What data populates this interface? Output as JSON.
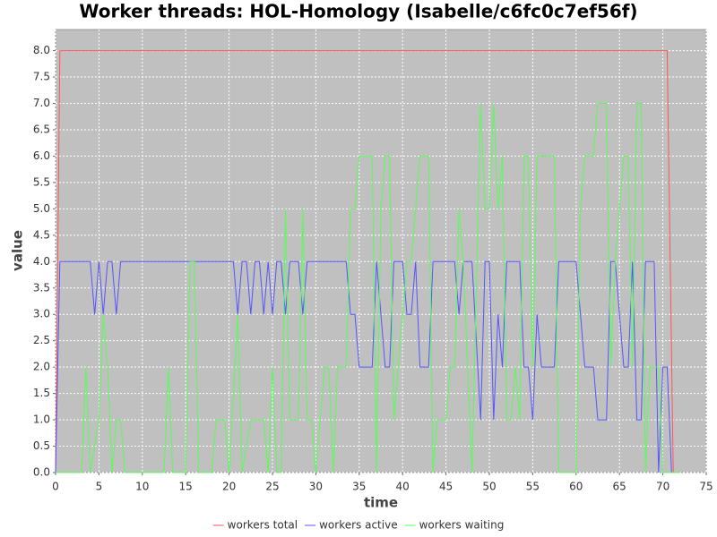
{
  "chart_data": {
    "type": "line",
    "title": "Worker threads: HOL-Homology (Isabelle/c6fc0c7ef56f)",
    "x_label": "time",
    "y_label": "value",
    "xlim": [
      0,
      75
    ],
    "xticks": [
      0,
      5,
      10,
      15,
      20,
      25,
      30,
      35,
      40,
      45,
      50,
      55,
      60,
      65,
      70,
      75
    ],
    "ylim": [
      0,
      8.4
    ],
    "yticks": [
      {
        "value": 0,
        "label": "0.0"
      },
      {
        "value": 0.5,
        "label": "0.5"
      },
      {
        "value": 1,
        "label": "1.0"
      },
      {
        "value": 1.5,
        "label": "1.5"
      },
      {
        "value": 2,
        "label": "2.0"
      },
      {
        "value": 2.5,
        "label": "2.5"
      },
      {
        "value": 3,
        "label": "3.0"
      },
      {
        "value": 3.5,
        "label": "3.5"
      },
      {
        "value": 4,
        "label": "4.0"
      },
      {
        "value": 4.5,
        "label": "4.5"
      },
      {
        "value": 5,
        "label": "5.0"
      },
      {
        "value": 5.5,
        "label": "5.5"
      },
      {
        "value": 6,
        "label": "6.0"
      },
      {
        "value": 6.5,
        "label": "6.5"
      },
      {
        "value": 7,
        "label": "7.0"
      },
      {
        "value": 7.5,
        "label": "7.5"
      },
      {
        "value": 8,
        "label": "8.0"
      }
    ],
    "grid": true,
    "legend": "bottom",
    "series": [
      {
        "name": "workers total",
        "color": "#ff5555",
        "x": [
          0,
          0.5,
          70.5,
          71.2,
          72
        ],
        "values": [
          0,
          8,
          8,
          0,
          0
        ]
      },
      {
        "name": "workers active",
        "color": "#5555ff",
        "x": [
          0,
          0.5,
          4,
          4.5,
          5,
          5.5,
          6,
          6.5,
          7,
          7.5,
          20.5,
          21,
          21.5,
          22,
          22.5,
          23,
          23.5,
          24,
          24.5,
          25,
          25.5,
          26,
          26.5,
          27,
          28,
          28.5,
          29,
          33.5,
          34,
          34.5,
          35,
          36.5,
          37,
          38,
          38.5,
          39,
          40,
          40.5,
          41,
          41.5,
          42,
          43,
          43.5,
          46,
          46.5,
          47,
          48,
          49,
          49.5,
          50,
          50.5,
          51,
          51.5,
          52,
          53.5,
          54,
          54.5,
          55,
          55.5,
          56,
          57.5,
          58,
          60,
          61,
          62,
          62.5,
          63.5,
          64,
          64.5,
          65,
          65.5,
          66,
          66.5,
          67,
          67.5,
          68,
          69,
          69.5,
          70,
          70.5,
          71,
          72
        ],
        "values": [
          0,
          4,
          4,
          3,
          4,
          3,
          4,
          4,
          3,
          4,
          4,
          3,
          4,
          4,
          3,
          4,
          4,
          3,
          4,
          3,
          4,
          4,
          3,
          4,
          4,
          3,
          4,
          4,
          3,
          3,
          2,
          2,
          4,
          2,
          2,
          4,
          4,
          3,
          3,
          4,
          2,
          2,
          4,
          4,
          3,
          4,
          4,
          1,
          4,
          4,
          1,
          3,
          2,
          4,
          4,
          2,
          2,
          1,
          3,
          2,
          2,
          4,
          4,
          2,
          2,
          1,
          1,
          4,
          4,
          3,
          2,
          2,
          4,
          1,
          1,
          4,
          4,
          0,
          2,
          2,
          0,
          0
        ]
      },
      {
        "name": "workers waiting",
        "color": "#55ff55",
        "x": [
          0,
          3,
          3.5,
          4,
          5,
          5.5,
          6,
          6.5,
          7,
          7.5,
          8,
          12.5,
          13,
          13.5,
          15,
          15.5,
          16,
          16.5,
          18,
          18.5,
          19.5,
          20,
          21,
          21.5,
          22.5,
          24,
          24.5,
          25,
          25.5,
          26,
          26.5,
          27,
          28,
          28.5,
          29,
          29.5,
          30,
          31,
          31.5,
          32,
          32.5,
          33.5,
          34,
          34.5,
          35,
          36.5,
          37,
          37.5,
          38,
          38.5,
          39,
          40,
          40.5,
          41,
          42,
          43,
          43.5,
          44,
          45,
          45.5,
          46,
          46.5,
          47,
          48,
          49,
          49.5,
          50,
          50.5,
          51,
          51.5,
          52,
          52.5,
          53,
          53.5,
          54,
          54.5,
          55,
          55.5,
          57.5,
          58,
          60,
          60.5,
          61,
          62,
          62.5,
          63.5,
          64,
          64.5,
          65,
          65.5,
          66,
          66.5,
          67,
          67.5,
          68,
          68.5,
          69.5,
          70,
          72
        ],
        "values": [
          0,
          0,
          2,
          0,
          1,
          3,
          2,
          0,
          1,
          1,
          0,
          0,
          2,
          0,
          0,
          4,
          4,
          0,
          0,
          1,
          1,
          0,
          3,
          0,
          1,
          1,
          0,
          2,
          0,
          0,
          5,
          1,
          1,
          5,
          1,
          1,
          0,
          2,
          2,
          0,
          2,
          2,
          5,
          5,
          6,
          6,
          0,
          5,
          6,
          6,
          1,
          3,
          4,
          4,
          6,
          6,
          0,
          1,
          1,
          2,
          2,
          5,
          4,
          0,
          7,
          5,
          5,
          7,
          5,
          6,
          1,
          1,
          2,
          1,
          6,
          6,
          2,
          6,
          6,
          0,
          0,
          5,
          6,
          6,
          7,
          7,
          2,
          4,
          5,
          6,
          6,
          2,
          7,
          7,
          0,
          2,
          2,
          0,
          0
        ]
      }
    ]
  }
}
